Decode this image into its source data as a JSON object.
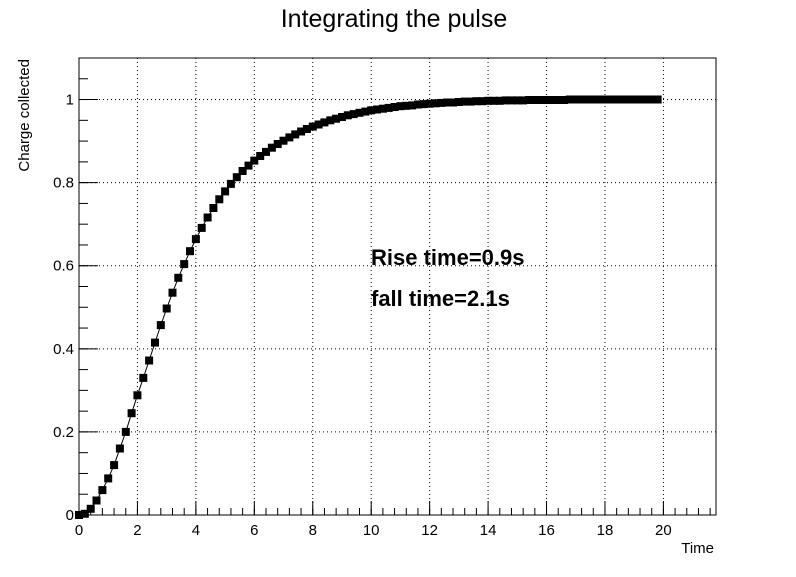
{
  "chart_data": {
    "type": "scatter",
    "title": "Integrating the pulse",
    "xlabel": "Time",
    "ylabel": "Charge collected",
    "xlim": [
      0,
      21.8
    ],
    "ylim": [
      0,
      1.1
    ],
    "x_ticks": [
      "0",
      "2",
      "4",
      "6",
      "8",
      "10",
      "12",
      "14",
      "16",
      "18",
      "20"
    ],
    "y_ticks": [
      "0",
      "0.2",
      "0.4",
      "0.6",
      "0.8",
      "1"
    ],
    "grid": true,
    "annotations": [
      "Rise time=0.9s",
      "fall time=2.1s"
    ],
    "series": [
      {
        "marker": "square",
        "connected_line": true,
        "color": "#000000",
        "x": [
          0,
          0.2,
          0.4,
          0.6,
          0.8,
          1.0,
          1.2,
          1.4,
          1.6,
          1.8,
          2.0,
          2.2,
          2.4,
          2.6,
          2.8,
          3.0,
          3.2,
          3.4,
          3.6,
          3.8,
          4.0,
          4.2,
          4.4,
          4.6,
          4.8,
          5.0,
          5.2,
          5.4,
          5.6,
          5.8,
          6.0,
          6.2,
          6.4,
          6.6,
          6.8,
          7.0,
          7.2,
          7.4,
          7.6,
          7.8,
          8.0,
          8.2,
          8.4,
          8.6,
          8.8,
          9.0,
          9.2,
          9.4,
          9.6,
          9.8,
          10.0,
          10.2,
          10.4,
          10.6,
          10.8,
          11.0,
          11.2,
          11.4,
          11.6,
          11.8,
          12.0,
          12.2,
          12.4,
          12.6,
          12.8,
          13.0,
          13.2,
          13.4,
          13.6,
          13.8,
          14.0,
          14.2,
          14.4,
          14.6,
          14.8,
          15.0,
          15.2,
          15.4,
          15.6,
          15.8,
          16.0,
          16.2,
          16.4,
          16.6,
          16.8,
          17.0,
          17.2,
          17.4,
          17.6,
          17.8,
          18.0,
          18.2,
          18.4,
          18.6,
          18.8,
          19.0,
          19.2,
          19.4,
          19.6,
          19.8
        ],
        "y": [
          0.0,
          0.003,
          0.015,
          0.035,
          0.06,
          0.088,
          0.12,
          0.16,
          0.2,
          0.245,
          0.288,
          0.33,
          0.372,
          0.415,
          0.457,
          0.497,
          0.535,
          0.571,
          0.604,
          0.635,
          0.664,
          0.691,
          0.716,
          0.739,
          0.76,
          0.779,
          0.797,
          0.813,
          0.828,
          0.841,
          0.853,
          0.864,
          0.874,
          0.884,
          0.893,
          0.901,
          0.909,
          0.916,
          0.923,
          0.929,
          0.935,
          0.94,
          0.945,
          0.95,
          0.954,
          0.958,
          0.962,
          0.965,
          0.968,
          0.971,
          0.974,
          0.976,
          0.978,
          0.98,
          0.982,
          0.984,
          0.985,
          0.986,
          0.988,
          0.989,
          0.99,
          0.991,
          0.992,
          0.993,
          0.993,
          0.994,
          0.995,
          0.995,
          0.996,
          0.996,
          0.997,
          0.997,
          0.997,
          0.998,
          0.998,
          0.998,
          0.998,
          0.999,
          0.999,
          0.999,
          0.999,
          0.999,
          0.999,
          0.999,
          1.0,
          1.0,
          1.0,
          1.0,
          1.0,
          1.0,
          1.0,
          1.0,
          1.0,
          1.0,
          1.0,
          1.0,
          1.0,
          1.0,
          1.0,
          1.0
        ]
      }
    ]
  }
}
